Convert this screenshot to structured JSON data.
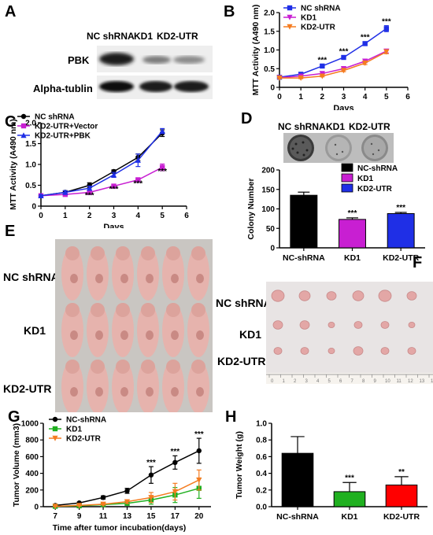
{
  "panels": {
    "A": {
      "label": "A",
      "lanes": [
        "NC shRNA",
        "KD1",
        "KD2-UTR"
      ],
      "rows": [
        "PBK",
        "Alpha-tublin"
      ]
    },
    "B": {
      "label": "B"
    },
    "C": {
      "label": "C"
    },
    "D": {
      "label": "D",
      "dish_labels": [
        "NC shRNA",
        "KD1",
        "KD2-UTR"
      ]
    },
    "E": {
      "label": "E",
      "rows": [
        "NC shRNA",
        "KD1",
        "KD2-UTR"
      ]
    },
    "F": {
      "label": "F",
      "rows": [
        "NC shRNA",
        "KD1",
        "KD2-UTR"
      ],
      "ruler_ticks": [
        "0",
        "1",
        "2",
        "3",
        "4",
        "5",
        "6",
        "7",
        "8",
        "9",
        "10",
        "11",
        "12",
        "13",
        "14"
      ]
    },
    "G": {
      "label": "G"
    },
    "H": {
      "label": "H"
    }
  },
  "colors": {
    "black": "#000000",
    "blue": "#1f2fe6",
    "magenta": "#c81fd2",
    "orange": "#f57c20",
    "green": "#20b020",
    "red": "#ff0000"
  },
  "chart_data": [
    {
      "id": "B",
      "type": "line",
      "xlabel": "Days",
      "ylabel": "MTT Activity (A490 nm)",
      "xlim": [
        0,
        6
      ],
      "ylim": [
        0,
        2.0
      ],
      "xticks": [
        "0",
        "1",
        "2",
        "3",
        "4",
        "5",
        "6"
      ],
      "yticks": [
        "0",
        "0.5",
        "1.0",
        "1.5",
        "2.0"
      ],
      "x": [
        0,
        1,
        2,
        3,
        4,
        5
      ],
      "legend": "top-left",
      "series": [
        {
          "name": "NC shRNA",
          "color": "blue",
          "marker": "square",
          "values": [
            0.27,
            0.35,
            0.57,
            0.8,
            1.17,
            1.57
          ],
          "err": [
            0.02,
            0.03,
            0.03,
            0.04,
            0.05,
            0.08
          ]
        },
        {
          "name": "KD1",
          "color": "magenta",
          "marker": "triangle-down",
          "values": [
            0.26,
            0.3,
            0.37,
            0.5,
            0.7,
            0.97
          ],
          "err": [
            0.02,
            0.02,
            0.03,
            0.03,
            0.04,
            0.05
          ]
        },
        {
          "name": "KD2-UTR",
          "color": "orange",
          "marker": "triangle-down",
          "values": [
            0.25,
            0.25,
            0.3,
            0.45,
            0.65,
            0.95
          ],
          "err": [
            0.02,
            0.02,
            0.02,
            0.03,
            0.04,
            0.05
          ]
        }
      ],
      "annotations": [
        {
          "x": 2,
          "y": 0.66,
          "text": "***"
        },
        {
          "x": 3,
          "y": 0.9,
          "text": "***"
        },
        {
          "x": 4,
          "y": 1.27,
          "text": "***"
        },
        {
          "x": 5,
          "y": 1.7,
          "text": "***"
        }
      ]
    },
    {
      "id": "C",
      "type": "line",
      "xlabel": "Days",
      "ylabel": "MTT Activity (A490 nm)",
      "xlim": [
        0,
        6
      ],
      "ylim": [
        0,
        2.0
      ],
      "xticks": [
        "0",
        "1",
        "2",
        "3",
        "4",
        "5",
        "6"
      ],
      "yticks": [
        "0",
        "0.5",
        "1.0",
        "1.5",
        "2.0"
      ],
      "x": [
        0,
        1,
        2,
        3,
        4,
        5
      ],
      "legend": "top-left",
      "series": [
        {
          "name": "NC shRNA",
          "color": "black",
          "marker": "circle",
          "values": [
            0.25,
            0.33,
            0.5,
            0.83,
            1.17,
            1.75
          ],
          "err": [
            0.02,
            0.04,
            0.06,
            0.04,
            0.08,
            0.08
          ]
        },
        {
          "name": "KD2-UTR+Vector",
          "color": "magenta",
          "marker": "square",
          "values": [
            0.25,
            0.28,
            0.33,
            0.48,
            0.63,
            0.93
          ],
          "err": [
            0.02,
            0.03,
            0.03,
            0.04,
            0.05,
            0.08
          ]
        },
        {
          "name": "KD2-UTR+PBK",
          "color": "blue",
          "marker": "triangle",
          "values": [
            0.25,
            0.33,
            0.43,
            0.75,
            1.1,
            1.8
          ],
          "err": [
            0.02,
            0.04,
            0.05,
            0.06,
            0.15,
            0.06
          ]
        }
      ],
      "annotations": [
        {
          "x": 2,
          "y": 0.2,
          "text": "***"
        },
        {
          "x": 3,
          "y": 0.35,
          "text": "***"
        },
        {
          "x": 4,
          "y": 0.48,
          "text": "***"
        },
        {
          "x": 5,
          "y": 0.77,
          "text": "***"
        }
      ]
    },
    {
      "id": "D",
      "type": "bar",
      "ylabel": "Colony Number",
      "ylim": [
        0,
        200
      ],
      "yticks": [
        "0",
        "50",
        "100",
        "150",
        "200"
      ],
      "categories": [
        "NC-shRNA",
        "KD1",
        "KD2-UTR"
      ],
      "values": [
        135,
        73,
        88
      ],
      "err": [
        8,
        4,
        3
      ],
      "colors": [
        "black",
        "magenta",
        "blue"
      ],
      "legend": "top-right",
      "legend_entries": [
        "NC-shRNA",
        "KD1",
        "KD2-UTR"
      ],
      "annotations": [
        "",
        "***",
        "***"
      ]
    },
    {
      "id": "G",
      "type": "line",
      "xlabel": "Time after tumor incubation(days)",
      "ylabel": "Tumor Volume (mm3)",
      "ylim": [
        0,
        1000
      ],
      "xticks": [
        "7",
        "9",
        "11",
        "13",
        "15",
        "17",
        "20"
      ],
      "yticks": [
        "0",
        "200",
        "400",
        "600",
        "800",
        "1000"
      ],
      "x": [
        7,
        9,
        11,
        13,
        15,
        17,
        20
      ],
      "legend": "top-left",
      "series": [
        {
          "name": "NC-shRNA",
          "color": "black",
          "marker": "circle",
          "values": [
            15,
            45,
            110,
            190,
            380,
            530,
            670
          ],
          "err": [
            5,
            10,
            20,
            30,
            100,
            80,
            150
          ]
        },
        {
          "name": "KD1",
          "color": "green",
          "marker": "square",
          "values": [
            5,
            10,
            25,
            40,
            80,
            140,
            220
          ],
          "err": [
            3,
            5,
            8,
            15,
            50,
            90,
            120
          ]
        },
        {
          "name": "KD2-UTR",
          "color": "orange",
          "marker": "triangle-down",
          "values": [
            5,
            15,
            30,
            60,
            110,
            180,
            320
          ],
          "err": [
            3,
            5,
            10,
            20,
            60,
            100,
            120
          ]
        }
      ],
      "annotations": [
        {
          "x": 15,
          "y": 500,
          "text": "***"
        },
        {
          "x": 17,
          "y": 630,
          "text": "***"
        },
        {
          "x": 20,
          "y": 840,
          "text": "***"
        }
      ]
    },
    {
      "id": "H",
      "type": "bar",
      "ylabel": "Tumor Weight (g)",
      "ylim": [
        0,
        1.0
      ],
      "yticks": [
        "0.0",
        "0.2",
        "0.4",
        "0.6",
        "0.8",
        "1.0"
      ],
      "categories": [
        "NC-shRNA",
        "KD1",
        "KD2-UTR"
      ],
      "values": [
        0.64,
        0.18,
        0.26
      ],
      "err": [
        0.2,
        0.11,
        0.1
      ],
      "colors": [
        "black",
        "green",
        "red"
      ],
      "annotations": [
        "",
        "***",
        "**"
      ]
    }
  ]
}
